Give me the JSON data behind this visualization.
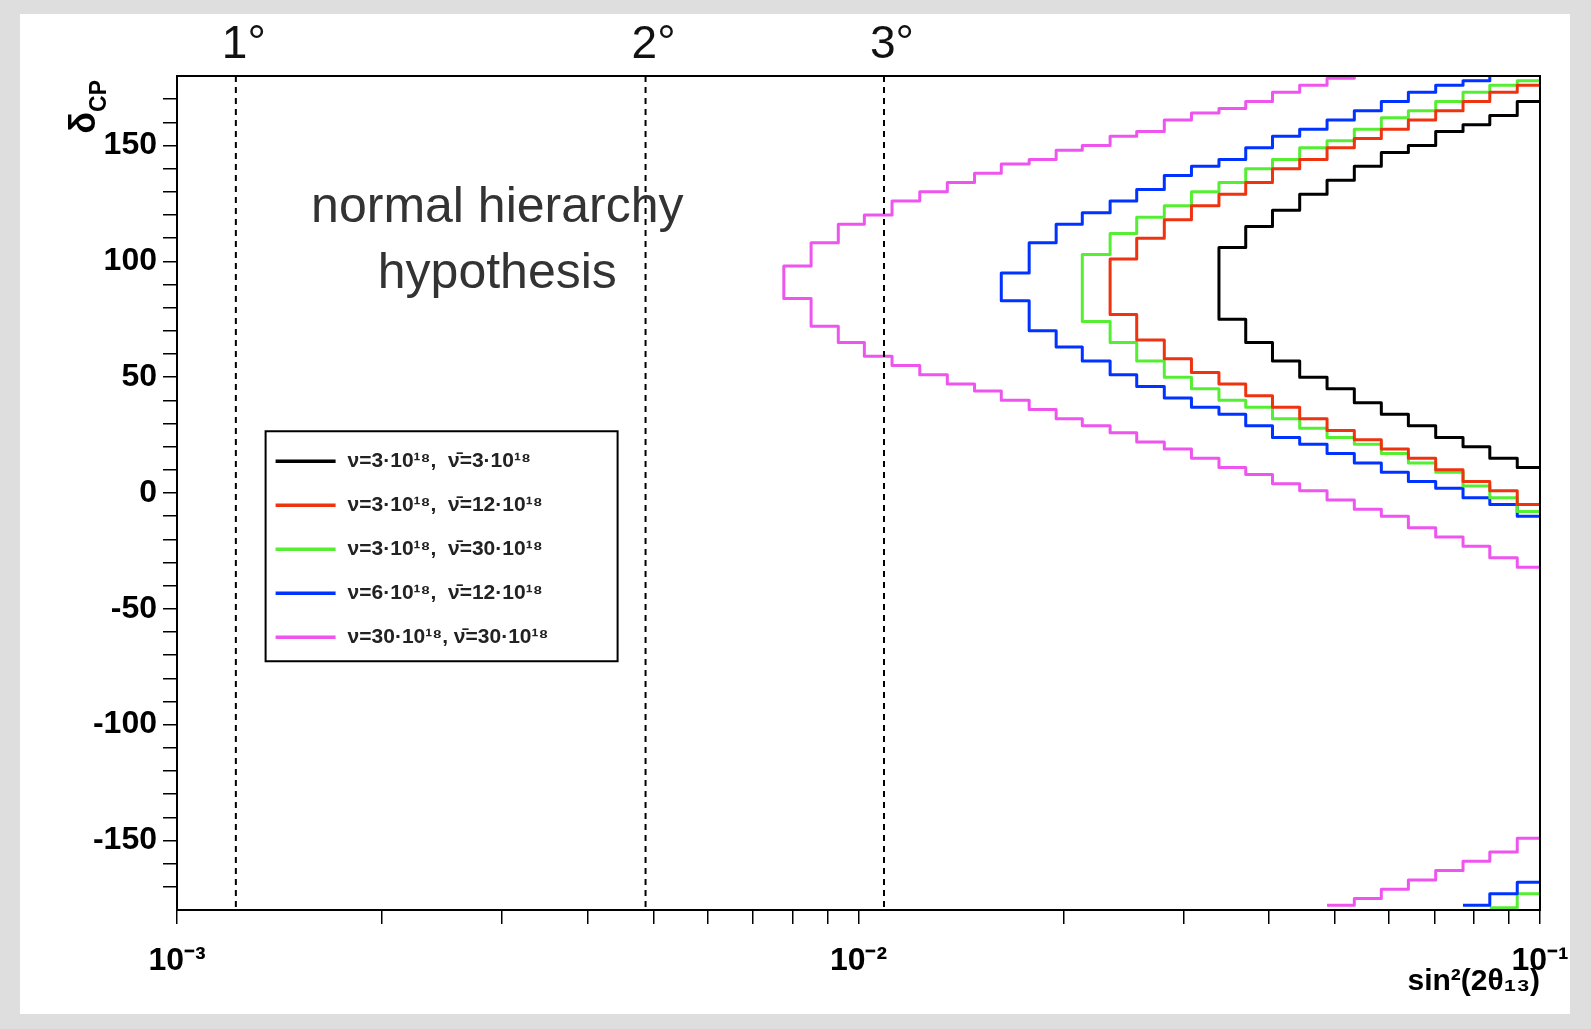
{
  "chart_data": {
    "type": "step",
    "xlabel": "sin²(2θ₁₃)",
    "ylabel": "δ$_{CP}$",
    "log": "x",
    "legend": "left",
    "annotations": [
      "normal hierarchy\nhypothesis",
      {
        "text": "1°",
        "x": 0.00122,
        "y": 180
      },
      {
        "text": "2°",
        "x": 0.00487,
        "y": 180
      },
      {
        "text": "3°",
        "x": 0.0109,
        "y": 180
      }
    ],
    "xlim": [
      0.001,
      0.1
    ],
    "xticks": [
      {
        "value": 0.001,
        "label": "10⁻³"
      },
      {
        "value": 0.002,
        "label": null
      },
      {
        "value": 0.003,
        "label": null
      },
      {
        "value": 0.004,
        "label": null
      },
      {
        "value": 0.005,
        "label": null
      },
      {
        "value": 0.006,
        "label": null
      },
      {
        "value": 0.007,
        "label": null
      },
      {
        "value": 0.008,
        "label": null
      },
      {
        "value": 0.009,
        "label": null
      },
      {
        "value": 0.01,
        "label": "10⁻²"
      },
      {
        "value": 0.02,
        "label": null
      },
      {
        "value": 0.03,
        "label": null
      },
      {
        "value": 0.04,
        "label": null
      },
      {
        "value": 0.05,
        "label": null
      },
      {
        "value": 0.06,
        "label": null
      },
      {
        "value": 0.07,
        "label": null
      },
      {
        "value": 0.08,
        "label": null
      },
      {
        "value": 0.09,
        "label": null
      },
      {
        "value": 0.1,
        "label": "10⁻¹"
      }
    ],
    "ylim": [
      -180,
      180
    ],
    "yticks": [
      {
        "value": -170,
        "label": null
      },
      {
        "value": -160,
        "label": null
      },
      -150,
      {
        "value": -140,
        "label": null
      },
      {
        "value": -130,
        "label": null
      },
      {
        "value": -120,
        "label": null
      },
      {
        "value": -110,
        "label": null
      },
      -100,
      {
        "value": -90,
        "label": null
      },
      {
        "value": -80,
        "label": null
      },
      {
        "value": -70,
        "label": null
      },
      {
        "value": -60,
        "label": null
      },
      -50,
      {
        "value": -40,
        "label": null
      },
      {
        "value": -30,
        "label": null
      },
      {
        "value": -20,
        "label": null
      },
      {
        "value": -10,
        "label": null
      },
      0,
      {
        "value": 10,
        "label": null
      },
      {
        "value": 20,
        "label": null
      },
      {
        "value": 30,
        "label": null
      },
      {
        "value": 40,
        "label": null
      },
      50,
      {
        "value": 60,
        "label": null
      },
      {
        "value": 70,
        "label": null
      },
      {
        "value": 80,
        "label": null
      },
      {
        "value": 90,
        "label": null
      },
      100,
      {
        "value": 110,
        "label": null
      },
      {
        "value": 120,
        "label": null
      },
      {
        "value": 130,
        "label": null
      },
      {
        "value": 140,
        "label": null
      },
      150,
      {
        "value": 160,
        "label": null
      },
      {
        "value": 170,
        "label": null
      }
    ],
    "ref_lines": [
      {
        "axis": "x",
        "value": 0.00122,
        "line_style": "dashed",
        "color": "#000000"
      },
      {
        "axis": "x",
        "value": 0.00487,
        "line_style": "dashed",
        "color": "#000000"
      },
      {
        "axis": "x",
        "value": 0.0109,
        "line_style": "dashed",
        "color": "#000000"
      }
    ],
    "series": [
      {
        "name": "ν=3·10¹⁸,  ν̄=3·10¹⁸",
        "color": "#000000",
        "x": [
          0.1,
          0.0926,
          0.0844,
          0.0771,
          0.0703,
          0.0641,
          0.0585,
          0.0534,
          0.0487,
          0.0444,
          0.0405,
          0.037,
          0.0338,
          0.037,
          0.0405,
          0.0444,
          0.0487,
          0.0534,
          0.0585,
          0.0641,
          0.0703,
          0.0771,
          0.0844,
          0.0926,
          0.1
        ],
        "values": [
          169,
          163,
          159,
          156,
          150,
          147,
          141,
          135,
          129,
          122,
          115,
          106,
          75,
          65,
          57,
          50,
          45,
          39,
          34,
          29,
          24,
          20,
          15,
          11,
          11
        ]
      },
      {
        "name": "ν=3·10¹⁸,  ν̄=12·10¹⁸",
        "color": "#ee3311",
        "x": [
          0.1,
          0.0926,
          0.0844,
          0.0771,
          0.0703,
          0.0641,
          0.0585,
          0.0534,
          0.0487,
          0.0444,
          0.0405,
          0.037,
          0.0338,
          0.0308,
          0.0281,
          0.0256,
          0.0234,
          0.0256,
          0.0281,
          0.0308,
          0.0338,
          0.037,
          0.0405,
          0.0444,
          0.0487,
          0.0534,
          0.0585,
          0.0641,
          0.0703,
          0.0771,
          0.0844,
          0.0926,
          0.1
        ],
        "values": [
          176,
          173,
          169,
          165,
          161,
          157,
          153,
          149,
          144,
          140,
          134,
          129,
          124,
          118,
          110,
          101,
          77,
          66,
          58,
          52,
          47,
          42,
          37,
          32,
          27,
          23,
          19,
          15,
          10,
          5,
          1,
          -5,
          -5
        ]
      },
      {
        "name": "ν=3·10¹⁸,  ν̄=30·10¹⁸",
        "color": "#55ee33",
        "x": [
          0.1,
          0.0926,
          0.0844,
          0.0771,
          0.0703,
          0.0641,
          0.0585,
          0.0534,
          0.0487,
          0.0444,
          0.0405,
          0.037,
          0.0338,
          0.0308,
          0.0281,
          0.0256,
          0.0234,
          0.0213,
          0.0234,
          0.0256,
          0.0281,
          0.0308,
          0.0338,
          0.037,
          0.0405,
          0.0444,
          0.0487,
          0.0534,
          0.0585,
          0.0641,
          0.0703,
          0.0771,
          0.0844,
          0.0926,
          0.1
        ],
        "values": [
          178,
          176,
          173,
          169,
          165,
          162,
          157,
          152,
          149,
          144,
          140,
          134,
          130,
          124,
          119,
          112,
          103,
          74,
          65,
          57,
          50,
          45,
          40,
          37,
          32,
          28,
          24,
          21,
          17,
          13,
          9,
          3,
          -2,
          -8,
          -8
        ]
      },
      {
        "name": "ν=6·10¹⁸,  ν̄=12·10¹⁸",
        "color": "#0033ff",
        "x": [
          0.0844,
          0.0844,
          0.0771,
          0.0703,
          0.0641,
          0.0585,
          0.0534,
          0.0487,
          0.0444,
          0.0405,
          0.037,
          0.0338,
          0.0308,
          0.0281,
          0.0256,
          0.0234,
          0.0213,
          0.0195,
          0.0178,
          0.0162,
          0.0178,
          0.0195,
          0.0213,
          0.0234,
          0.0256,
          0.0281,
          0.0308,
          0.0338,
          0.037,
          0.0405,
          0.0444,
          0.0487,
          0.0534,
          0.0585,
          0.0641,
          0.0703,
          0.0771,
          0.0844,
          0.0926,
          0.1
        ],
        "values": [
          180,
          178,
          176,
          173,
          169,
          165,
          161,
          157,
          154,
          149,
          144,
          141,
          137,
          131,
          126,
          121,
          116,
          108,
          95,
          83,
          70,
          63,
          57,
          51,
          46,
          41,
          37,
          34,
          29,
          24,
          21,
          17,
          13,
          9,
          5,
          2,
          -2,
          -5,
          -10,
          -10
        ]
      },
      {
        "name": "ν=30·10¹⁸, ν̄=30·10¹⁸",
        "color": "#ee55ee",
        "x": [
          0.0534,
          0.0534,
          0.0487,
          0.0444,
          0.0405,
          0.037,
          0.0338,
          0.0308,
          0.0281,
          0.0256,
          0.0234,
          0.0213,
          0.0195,
          0.0178,
          0.0162,
          0.0148,
          0.0135,
          0.0123,
          0.0112,
          0.0102,
          0.00934,
          0.00852,
          0.00777,
          0.00852,
          0.00934,
          0.0102,
          0.0112,
          0.0123,
          0.0135,
          0.0148,
          0.0162,
          0.0178,
          0.0195,
          0.0213,
          0.0234,
          0.0256,
          0.0281,
          0.0308,
          0.0338,
          0.037,
          0.0405,
          0.0444,
          0.0487,
          0.0534,
          0.0585,
          0.0641,
          0.0703,
          0.0771,
          0.0844,
          0.0926,
          0.1
        ],
        "values": [
          180,
          179,
          176,
          173,
          169,
          166,
          164,
          161,
          156,
          154,
          150,
          148,
          144,
          142,
          138,
          134,
          130,
          126,
          120,
          116,
          108,
          98,
          84,
          72,
          65,
          59,
          55,
          51,
          47,
          44,
          40,
          36,
          32,
          29,
          26,
          22,
          19,
          15,
          11,
          8,
          4,
          1,
          -3,
          -7,
          -10,
          -15,
          -19,
          -23,
          -28,
          -32,
          -32
        ]
      },
      {
        "color": "#ee55ee",
        "x": [
          0.0487,
          0.0534,
          0.0585,
          0.0641,
          0.0703,
          0.0771,
          0.0844,
          0.0926,
          0.1
        ],
        "values": [
          -178,
          -175,
          -171,
          -167,
          -163,
          -159,
          -155,
          -149,
          -149
        ]
      },
      {
        "color": "#0033ff",
        "x": [
          0.0771,
          0.0844,
          0.0926,
          0.1
        ],
        "values": [
          -178,
          -173,
          -168,
          -168
        ]
      },
      {
        "color": "#55ee33",
        "x": [
          0.0844,
          0.0926,
          0.1
        ],
        "values": [
          -179,
          -173,
          -173
        ]
      }
    ]
  }
}
